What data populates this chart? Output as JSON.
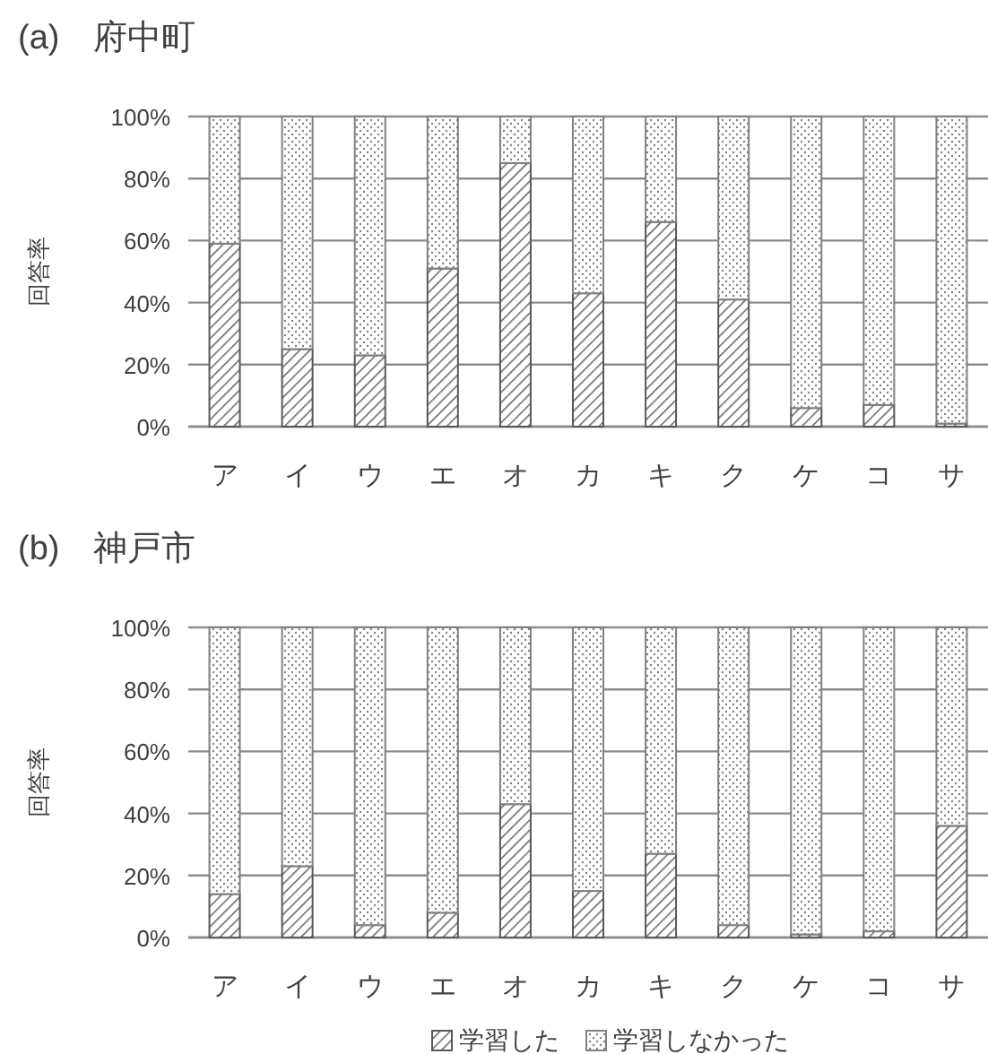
{
  "chart_data": [
    {
      "type": "bar",
      "stacked": true,
      "title": "(a)　府中町",
      "ylabel": "回答率",
      "categories": [
        "ア",
        "イ",
        "ウ",
        "エ",
        "オ",
        "カ",
        "キ",
        "ク",
        "ケ",
        "コ",
        "サ"
      ],
      "series": [
        {
          "color": "#595959",
          "values": [
            59,
            25,
            23,
            51,
            85,
            43,
            66,
            41,
            6,
            7,
            1
          ]
        },
        {
          "color": "#808080",
          "values": [
            41,
            75,
            77,
            49,
            15,
            57,
            34,
            59,
            94,
            93,
            99
          ]
        }
      ],
      "ylim": [
        0,
        100
      ],
      "yticks": [
        {
          "value": 0,
          "label": "0%"
        },
        {
          "value": 20,
          "label": "20%"
        },
        {
          "value": 40,
          "label": "40%"
        },
        {
          "value": 60,
          "label": "60%"
        },
        {
          "value": 80,
          "label": "80%"
        },
        {
          "value": 100,
          "label": "100%"
        }
      ],
      "grid": "y"
    },
    {
      "type": "bar",
      "stacked": true,
      "title": "(b)　神戸市",
      "ylabel": "回答率",
      "categories": [
        "ア",
        "イ",
        "ウ",
        "エ",
        "オ",
        "カ",
        "キ",
        "ク",
        "ケ",
        "コ",
        "サ"
      ],
      "series": [
        {
          "name": "学習した",
          "color": "#595959",
          "values": [
            14,
            23,
            4,
            8,
            43,
            15,
            27,
            4,
            1,
            2,
            36
          ]
        },
        {
          "name": "学習しなかった",
          "color": "#808080",
          "values": [
            86,
            77,
            96,
            92,
            57,
            85,
            73,
            96,
            99,
            98,
            64
          ]
        }
      ],
      "ylim": [
        0,
        100
      ],
      "yticks": [
        {
          "value": 0,
          "label": "0%"
        },
        {
          "value": 20,
          "label": "20%"
        },
        {
          "value": 40,
          "label": "40%"
        },
        {
          "value": 60,
          "label": "60%"
        },
        {
          "value": 80,
          "label": "80%"
        },
        {
          "value": 100,
          "label": "100%"
        }
      ],
      "grid": "y",
      "legend": "bottom"
    }
  ]
}
